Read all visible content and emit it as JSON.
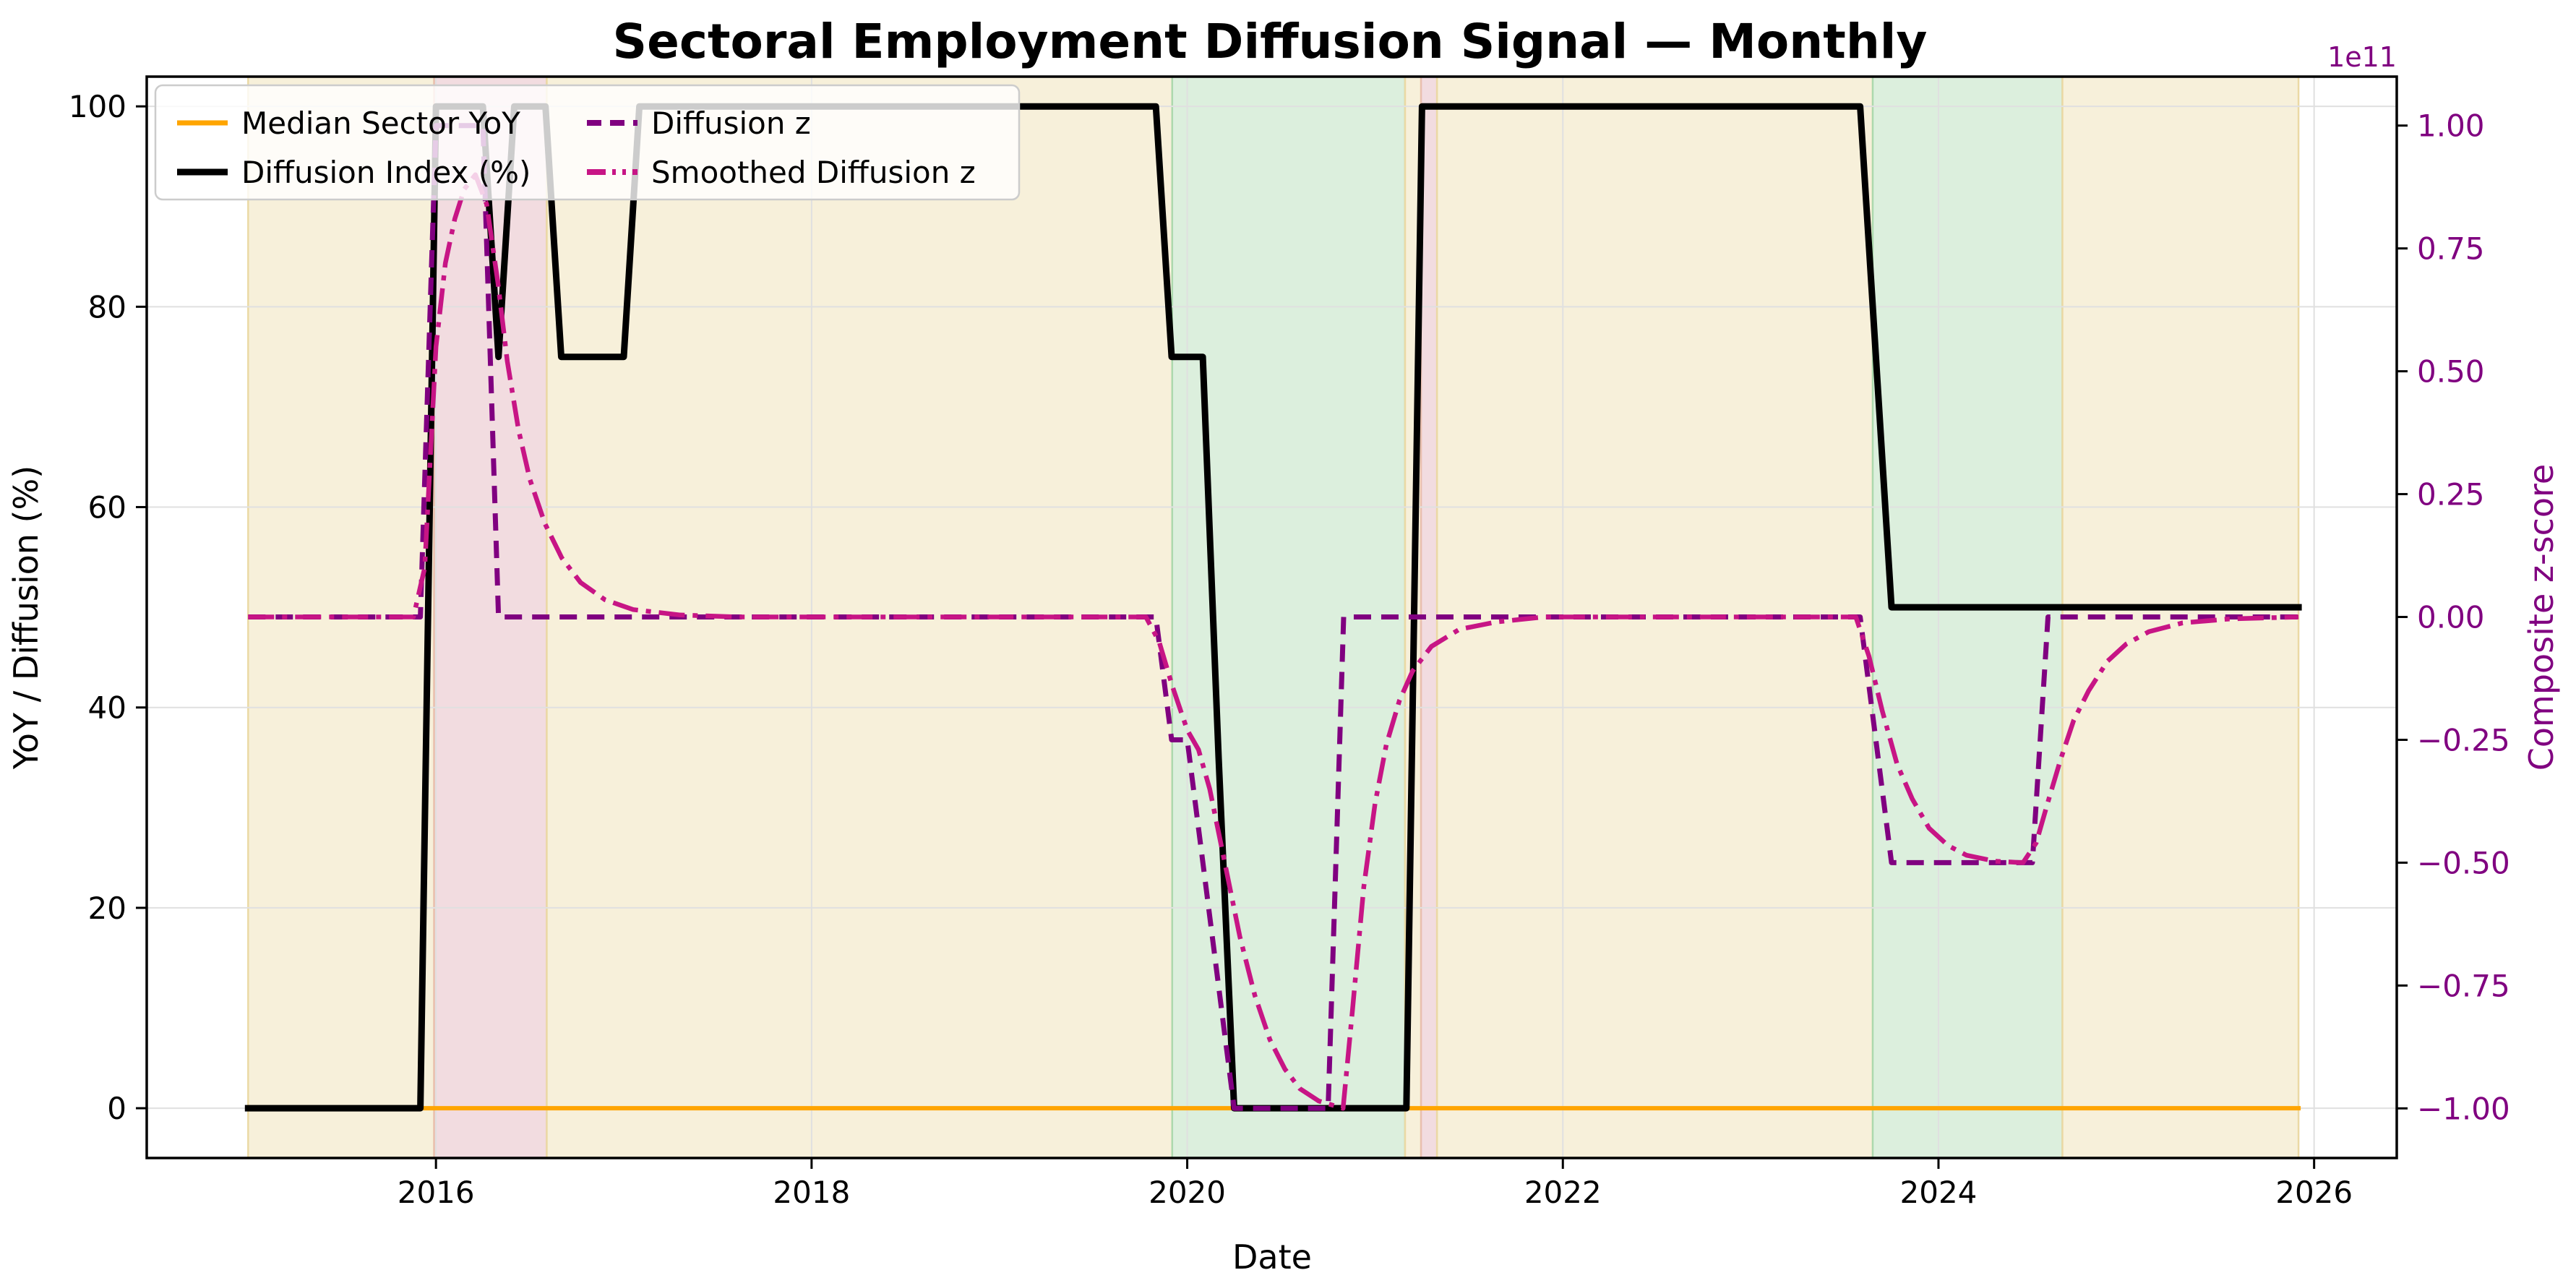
{
  "chart_data": {
    "type": "line",
    "title": "Sectoral Employment Diffusion Signal — Monthly",
    "xlabel": "Date",
    "ylabel_left": "YoY / Diffusion (%)",
    "ylabel_right": "Composite z-score",
    "offset_label": "1e11",
    "x_unit": "decimal_year",
    "grid": true,
    "legend_position": "upper left",
    "xlim": [
      2014.46,
      2026.44
    ],
    "ylim_left": [
      -4.97,
      102.97
    ],
    "ylim_right": [
      -1.101,
      1.0996
    ],
    "x_ticks": {
      "values": [
        2016,
        2018,
        2020,
        2022,
        2024,
        2026
      ],
      "labels": [
        "2016",
        "2018",
        "2020",
        "2022",
        "2024",
        "2026"
      ]
    },
    "y_ticks_left": {
      "values": [
        0,
        20,
        40,
        60,
        80,
        100
      ],
      "labels": [
        "0",
        "20",
        "40",
        "60",
        "80",
        "100"
      ]
    },
    "y_ticks_right": {
      "values": [
        1.0,
        0.75,
        0.5,
        0.25,
        0.0,
        -0.25,
        -0.5,
        -0.75,
        -1.0
      ],
      "labels": [
        "1.00",
        "0.75",
        "0.50",
        "0.25",
        "0.00",
        "−0.25",
        "−0.50",
        "−0.75",
        "−1.00"
      ]
    },
    "bands": [
      {
        "kind": "beige",
        "x0": 2015.0,
        "x1": 2015.99
      },
      {
        "kind": "pink",
        "x0": 2015.99,
        "x1": 2016.59
      },
      {
        "kind": "beige",
        "x0": 2016.59,
        "x1": 2019.92
      },
      {
        "kind": "green",
        "x0": 2019.92,
        "x1": 2021.16
      },
      {
        "kind": "beige",
        "x0": 2021.16,
        "x1": 2021.245
      },
      {
        "kind": "pink",
        "x0": 2021.245,
        "x1": 2021.33
      },
      {
        "kind": "beige",
        "x0": 2021.33,
        "x1": 2023.65
      },
      {
        "kind": "green",
        "x0": 2023.65,
        "x1": 2024.66
      },
      {
        "kind": "beige",
        "x0": 2024.66,
        "x1": 2025.917
      }
    ],
    "series": [
      {
        "name": "Median Sector YoY",
        "axis": "left",
        "color_key": "orange",
        "width": 6,
        "dash": null,
        "points": [
          [
            2015.0,
            0
          ],
          [
            2025.917,
            0
          ]
        ]
      },
      {
        "name": "Diffusion Index (%)",
        "axis": "left",
        "color_key": "black",
        "width": 9,
        "dash": null,
        "points": [
          [
            2015.0,
            0
          ],
          [
            2015.917,
            0
          ],
          [
            2016.0,
            100
          ],
          [
            2016.25,
            100
          ],
          [
            2016.333,
            75
          ],
          [
            2016.417,
            100
          ],
          [
            2016.583,
            100
          ],
          [
            2016.667,
            75
          ],
          [
            2017.0,
            75
          ],
          [
            2017.083,
            100
          ],
          [
            2019.833,
            100
          ],
          [
            2019.917,
            75
          ],
          [
            2020.083,
            75
          ],
          [
            2020.167,
            35
          ],
          [
            2020.25,
            0
          ],
          [
            2021.167,
            0
          ],
          [
            2021.25,
            100
          ],
          [
            2023.583,
            100
          ],
          [
            2023.667,
            75
          ],
          [
            2023.75,
            50
          ],
          [
            2025.917,
            50
          ]
        ]
      },
      {
        "name": "Diffusion z",
        "axis": "right",
        "color_key": "purple",
        "width": 7,
        "dash": "24 14",
        "points": [
          [
            2015.0,
            0
          ],
          [
            2015.917,
            0
          ],
          [
            2016.0,
            1.0
          ],
          [
            2016.25,
            1.0
          ],
          [
            2016.333,
            0
          ],
          [
            2019.833,
            0
          ],
          [
            2019.917,
            -0.25
          ],
          [
            2020.0,
            -0.25
          ],
          [
            2020.25,
            -1.0
          ],
          [
            2020.75,
            -1.0
          ],
          [
            2020.833,
            0
          ],
          [
            2023.583,
            0
          ],
          [
            2023.75,
            -0.5
          ],
          [
            2024.5,
            -0.5
          ],
          [
            2024.583,
            0
          ],
          [
            2025.917,
            0
          ]
        ]
      },
      {
        "name": "Smoothed Diffusion z",
        "axis": "right",
        "color_key": "magenta",
        "width": 6.5,
        "dash": "36 11 7 11",
        "points": [
          [
            2015.0,
            0
          ],
          [
            2015.88,
            0
          ],
          [
            2015.94,
            0.1
          ],
          [
            2016.0,
            0.55
          ],
          [
            2016.05,
            0.72
          ],
          [
            2016.1,
            0.81
          ],
          [
            2016.15,
            0.87
          ],
          [
            2016.21,
            0.9
          ],
          [
            2016.27,
            0.84
          ],
          [
            2016.33,
            0.68
          ],
          [
            2016.38,
            0.52
          ],
          [
            2016.44,
            0.38
          ],
          [
            2016.5,
            0.28
          ],
          [
            2016.58,
            0.19
          ],
          [
            2016.67,
            0.12
          ],
          [
            2016.77,
            0.07
          ],
          [
            2016.9,
            0.035
          ],
          [
            2017.05,
            0.015
          ],
          [
            2017.3,
            0.004
          ],
          [
            2017.6,
            0
          ],
          [
            2019.78,
            0
          ],
          [
            2019.85,
            -0.05
          ],
          [
            2019.92,
            -0.14
          ],
          [
            2020.0,
            -0.23
          ],
          [
            2020.06,
            -0.27
          ],
          [
            2020.12,
            -0.35
          ],
          [
            2020.2,
            -0.5
          ],
          [
            2020.28,
            -0.65
          ],
          [
            2020.36,
            -0.77
          ],
          [
            2020.44,
            -0.86
          ],
          [
            2020.52,
            -0.92
          ],
          [
            2020.6,
            -0.96
          ],
          [
            2020.7,
            -0.985
          ],
          [
            2020.83,
            -1.0
          ],
          [
            2020.88,
            -0.8
          ],
          [
            2020.94,
            -0.55
          ],
          [
            2021.0,
            -0.38
          ],
          [
            2021.06,
            -0.26
          ],
          [
            2021.13,
            -0.17
          ],
          [
            2021.2,
            -0.11
          ],
          [
            2021.3,
            -0.06
          ],
          [
            2021.45,
            -0.025
          ],
          [
            2021.65,
            -0.01
          ],
          [
            2021.9,
            0
          ],
          [
            2023.56,
            0
          ],
          [
            2023.63,
            -0.08
          ],
          [
            2023.7,
            -0.19
          ],
          [
            2023.78,
            -0.3
          ],
          [
            2023.86,
            -0.37
          ],
          [
            2023.95,
            -0.43
          ],
          [
            2024.05,
            -0.465
          ],
          [
            2024.15,
            -0.485
          ],
          [
            2024.3,
            -0.497
          ],
          [
            2024.45,
            -0.5
          ],
          [
            2024.52,
            -0.46
          ],
          [
            2024.58,
            -0.38
          ],
          [
            2024.65,
            -0.29
          ],
          [
            2024.72,
            -0.21
          ],
          [
            2024.8,
            -0.15
          ],
          [
            2024.9,
            -0.09
          ],
          [
            2025.0,
            -0.055
          ],
          [
            2025.12,
            -0.03
          ],
          [
            2025.3,
            -0.012
          ],
          [
            2025.55,
            -0.004
          ],
          [
            2025.917,
            0
          ]
        ]
      }
    ]
  },
  "legend": {
    "items": [
      {
        "label": "Median Sector YoY",
        "color_key": "orange",
        "dash": null,
        "width": 7
      },
      {
        "label": "Diffusion Index (%)",
        "color_key": "black",
        "dash": null,
        "width": 9
      },
      {
        "label": "Diffusion z",
        "color_key": "purple",
        "dash": "20 12",
        "width": 8
      },
      {
        "label": "Smoothed Diffusion z",
        "color_key": "magenta",
        "dash": "26 9 5 9 5 9",
        "width": 8
      }
    ]
  },
  "colors": {
    "orange": "#FFA500",
    "black": "#000000",
    "purple": "#800080",
    "magenta": "#C71585",
    "band_beige": "#F7F0DA",
    "band_beige_edge": "#EBD9A4",
    "band_pink": "#F2DCE0",
    "band_pink_edge": "#E9BFAE",
    "band_green": "#DCEFDD",
    "band_green_edge": "#ACD9AD",
    "grid": "#E0E0E0",
    "spine": "#000000",
    "right_axis_text": "#800080",
    "legend_bg": "rgba(255,255,255,0.8)",
    "legend_border": "#CCCCCC"
  }
}
